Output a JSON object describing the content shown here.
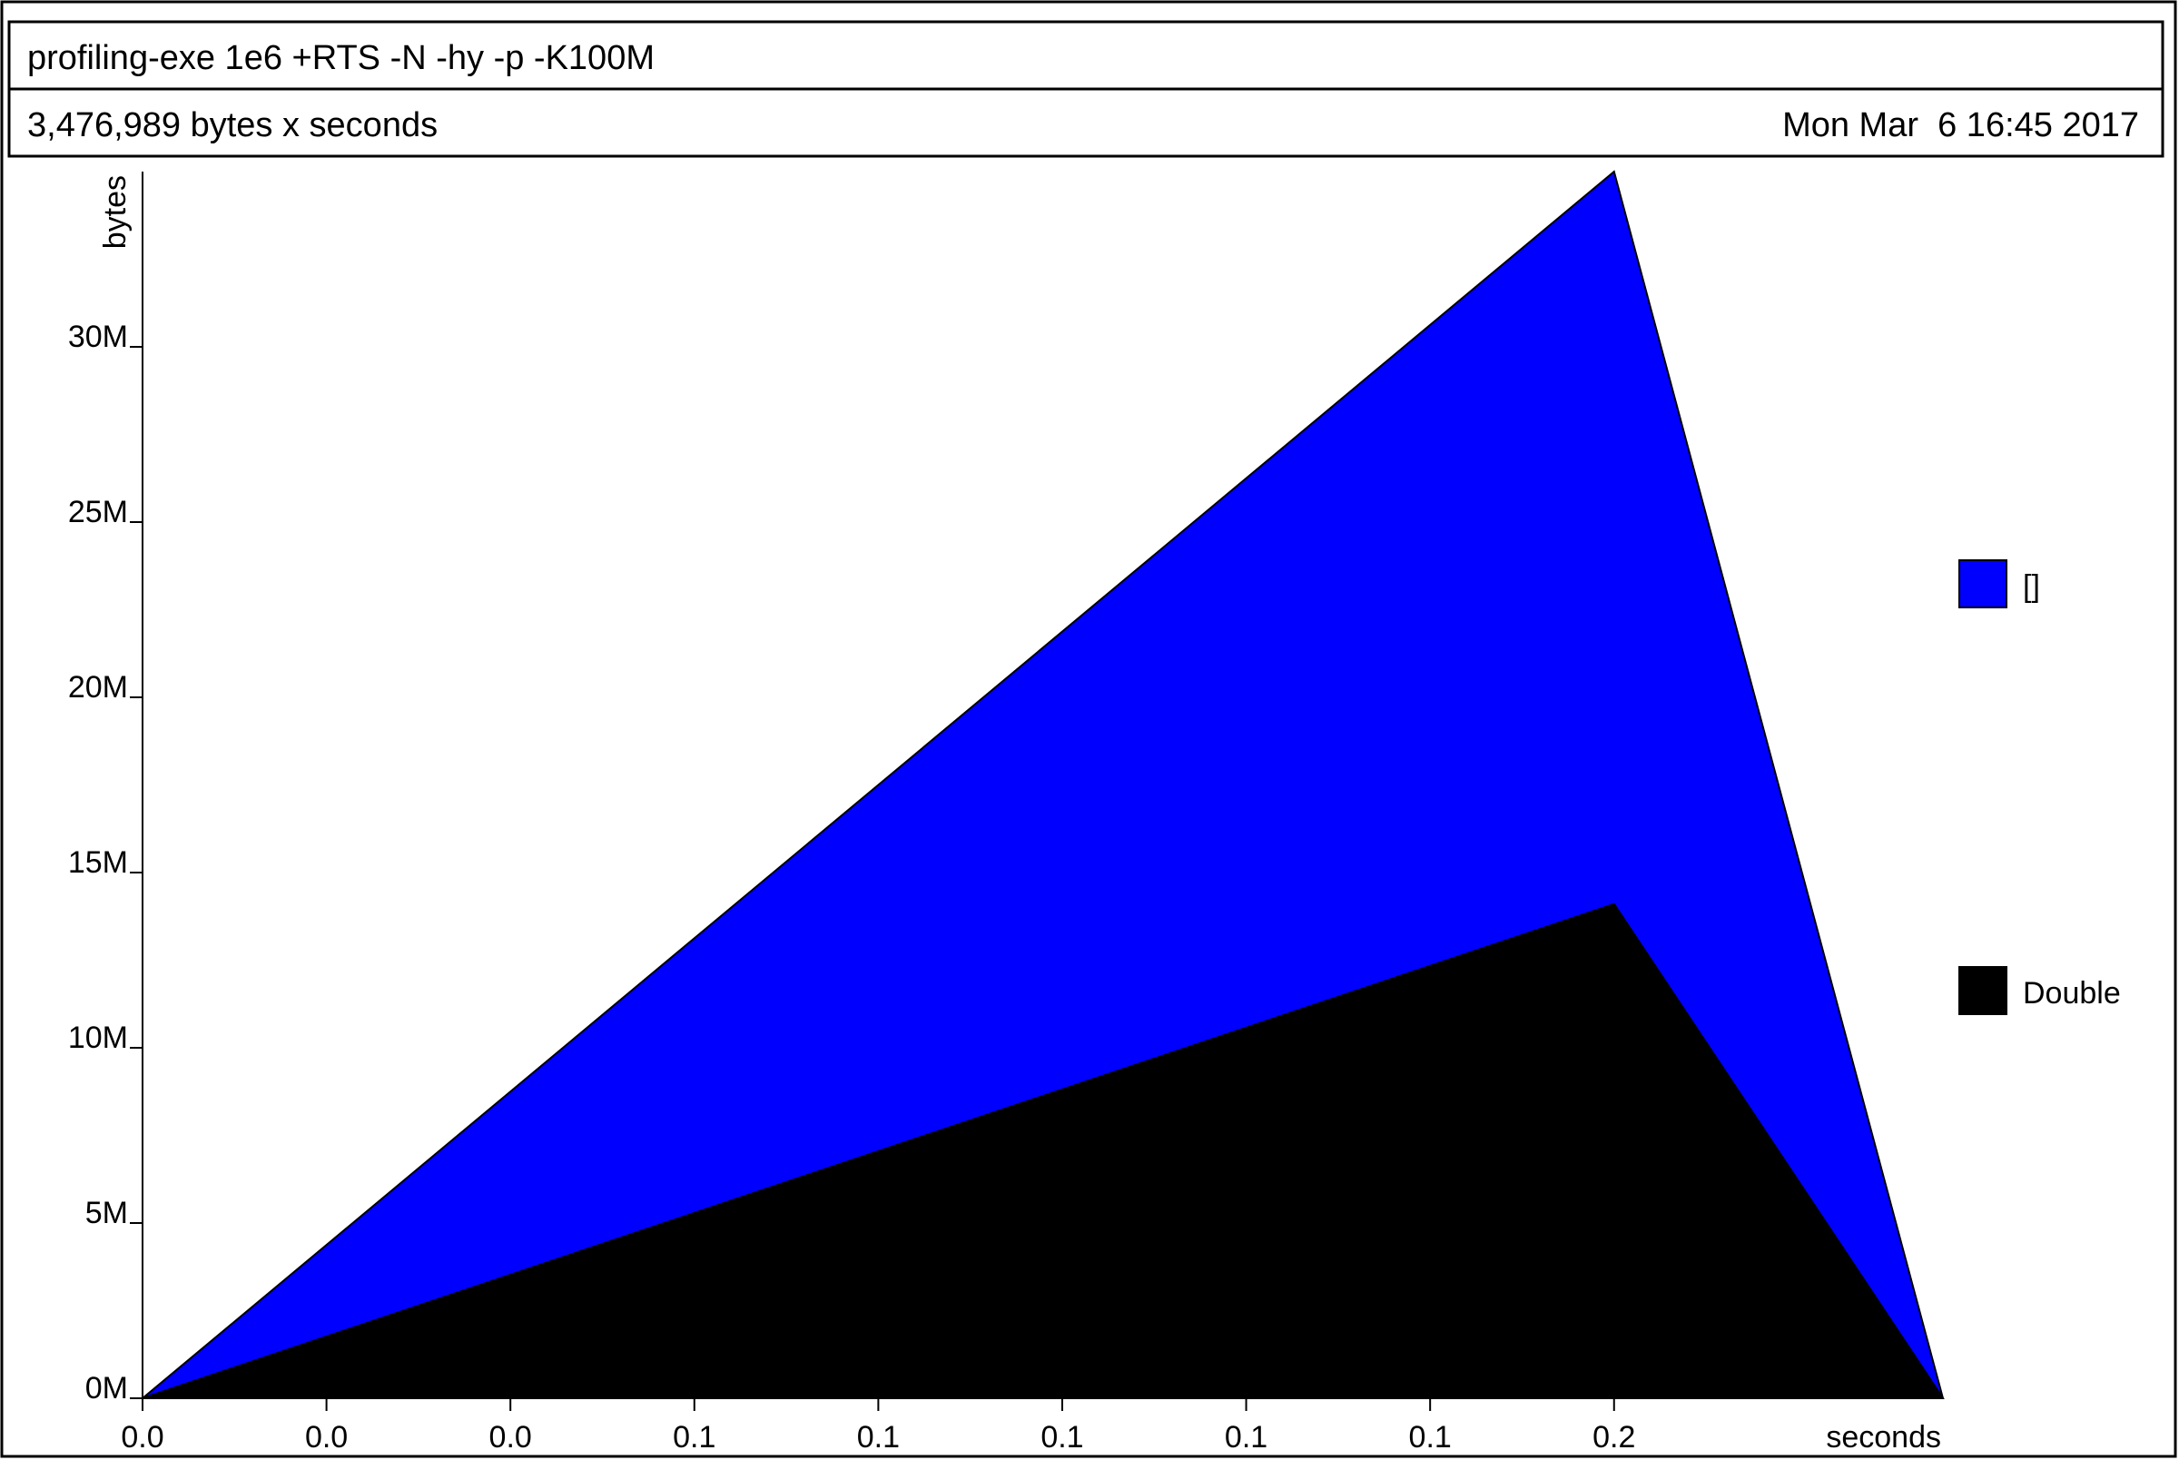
{
  "header": {
    "title": "profiling-exe 1e6 +RTS -N -hy -p -K100M",
    "total": "3,476,989 bytes x seconds",
    "date": "Mon Mar  6 16:45 2017"
  },
  "chart_data": {
    "type": "area",
    "stacked": true,
    "ylabel": "bytes",
    "xlabel": "seconds",
    "ylim": [
      0,
      35000000
    ],
    "xlim": [
      0,
      0.2447
    ],
    "yticks": [
      {
        "value": 0,
        "label": "0M"
      },
      {
        "value": 5000000,
        "label": "5M"
      },
      {
        "value": 10000000,
        "label": "10M"
      },
      {
        "value": 15000000,
        "label": "15M"
      },
      {
        "value": 20000000,
        "label": "20M"
      },
      {
        "value": 25000000,
        "label": "25M"
      },
      {
        "value": 30000000,
        "label": "30M"
      }
    ],
    "xticks": [
      {
        "value": 0.0,
        "label": "0.0"
      },
      {
        "value": 0.025,
        "label": "0.0"
      },
      {
        "value": 0.05,
        "label": "0.0"
      },
      {
        "value": 0.075,
        "label": "0.1"
      },
      {
        "value": 0.1,
        "label": "0.1"
      },
      {
        "value": 0.125,
        "label": "0.1"
      },
      {
        "value": 0.15,
        "label": "0.1"
      },
      {
        "value": 0.175,
        "label": "0.1"
      },
      {
        "value": 0.2,
        "label": "0.2"
      }
    ],
    "x": [
      0.0,
      0.2,
      0.2447
    ],
    "series": [
      {
        "name": "Double",
        "color": "#000000",
        "values": [
          0,
          14100000,
          0
        ]
      },
      {
        "name": "[]",
        "color": "#0000ff",
        "values": [
          0,
          20900000,
          0
        ]
      }
    ],
    "legend": [
      "[]",
      "Double"
    ],
    "legend_position": "right",
    "grid": false
  }
}
